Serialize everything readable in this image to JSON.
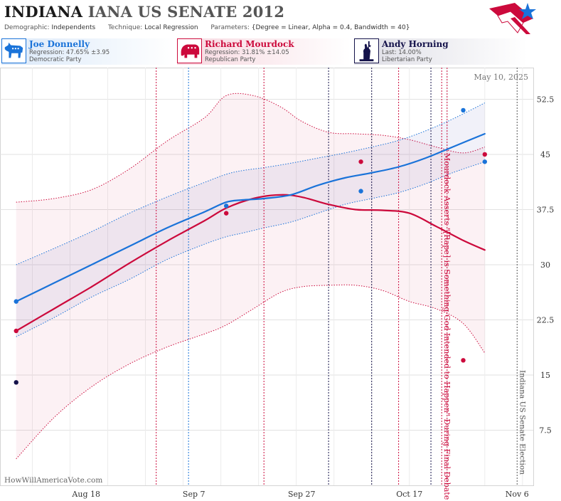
{
  "header": {
    "title_state": "INDIANA",
    "title_rest": "IANA US SENATE 2012",
    "demographic_label": "Demographic:",
    "demographic_value": "Independents",
    "technique_label": "Technique:",
    "technique_value": "Local Regression",
    "parameters_label": "Parameters:",
    "parameters_value": "{Degree = Linear, Alpha = 0.4, Bandwidth = 40}"
  },
  "candidates": [
    {
      "name": "Joe Donnelly",
      "stat": "Regression: 47.65% ±3.95",
      "party": "Democratic Party",
      "color": "#1a73d9",
      "icon": "donkey-icon"
    },
    {
      "name": "Richard Mourdock",
      "stat": "Regression: 31.81% ±14.05",
      "party": "Republican Party",
      "color": "#cc0a3c",
      "icon": "elephant-icon"
    },
    {
      "name": "Andy Horning",
      "stat": "Last: 14.00%",
      "party": "Libertarian Party",
      "color": "#14124a",
      "icon": "liberty-icon"
    }
  ],
  "chart_data": {
    "type": "line",
    "date_label": "May 10, 2025",
    "watermark": "HowWillAmericaVote.com",
    "x_ticks": [
      "Aug 18",
      "Sep 7",
      "Sep 27",
      "Oct 17",
      "Nov 6"
    ],
    "y_ticks": [
      7.5,
      15,
      22.5,
      30,
      37.5,
      45,
      52.5
    ],
    "ylim": [
      0,
      56.8
    ],
    "xlim": [
      "2012-08-02",
      "2012-11-09"
    ],
    "grid": true,
    "series": [
      {
        "name": "Joe Donnelly",
        "color": "#1a73d9",
        "x": [
          "2012-08-05",
          "2012-08-12",
          "2012-08-19",
          "2012-08-26",
          "2012-09-02",
          "2012-09-09",
          "2012-09-13",
          "2012-09-16",
          "2012-09-20",
          "2012-09-25",
          "2012-09-30",
          "2012-10-05",
          "2012-10-10",
          "2012-10-15",
          "2012-10-20",
          "2012-10-25",
          "2012-10-31"
        ],
        "y": [
          25,
          27.5,
          30,
          32.5,
          35,
          37.2,
          38.5,
          38.8,
          39,
          39.5,
          40.8,
          41.8,
          42.5,
          43.3,
          44.5,
          46,
          47.8
        ],
        "upper": [
          30,
          32.2,
          34.5,
          37,
          39.2,
          41.2,
          42.3,
          42.8,
          43.2,
          43.8,
          44.5,
          45.2,
          46,
          46.9,
          48.2,
          49.8,
          52
        ],
        "lower": [
          20.2,
          22.8,
          25.6,
          28,
          30.7,
          32.8,
          33.8,
          34.3,
          35,
          35.8,
          37,
          38.2,
          39,
          39.8,
          41,
          42.5,
          44
        ]
      },
      {
        "name": "Richard Mourdock",
        "color": "#cc0a3c",
        "x": [
          "2012-08-05",
          "2012-08-12",
          "2012-08-19",
          "2012-08-26",
          "2012-09-02",
          "2012-09-09",
          "2012-09-13",
          "2012-09-18",
          "2012-09-23",
          "2012-09-27",
          "2012-10-02",
          "2012-10-07",
          "2012-10-12",
          "2012-10-17",
          "2012-10-22",
          "2012-10-27",
          "2012-10-31"
        ],
        "y": [
          21,
          24,
          27,
          30.2,
          33.2,
          36,
          37.7,
          39,
          39.5,
          39.2,
          38.2,
          37.5,
          37.4,
          37,
          35.2,
          33.3,
          32
        ],
        "upper": [
          38.5,
          39,
          40.2,
          43,
          46.8,
          50,
          53,
          53,
          51.5,
          49.5,
          48,
          47.8,
          47.6,
          47,
          46,
          45.2,
          46
        ],
        "lower": [
          3.6,
          9.2,
          13.4,
          16.5,
          18.8,
          20.6,
          21.8,
          24,
          26.2,
          27,
          27.2,
          27.2,
          26.5,
          25,
          24,
          22,
          18
        ]
      }
    ],
    "points": [
      {
        "series": "Joe Donnelly",
        "color": "#1a73d9",
        "x": [
          "2012-08-05",
          "2012-09-13",
          "2012-10-08",
          "2012-10-27",
          "2012-10-31"
        ],
        "y": [
          25,
          38,
          40,
          51,
          44
        ]
      },
      {
        "series": "Richard Mourdock",
        "color": "#cc0a3c",
        "x": [
          "2012-08-05",
          "2012-09-13",
          "2012-10-08",
          "2012-10-27",
          "2012-10-31"
        ],
        "y": [
          21,
          37,
          44,
          17,
          45
        ]
      },
      {
        "series": "Andy Horning",
        "color": "#14124a",
        "x": [
          "2012-08-05"
        ],
        "y": [
          14
        ]
      }
    ],
    "events": [
      {
        "date": "2012-08-31",
        "color": "#cc0a3c"
      },
      {
        "date": "2012-09-06",
        "color": "#1a73d9"
      },
      {
        "date": "2012-09-20",
        "color": "#cc0a3c"
      },
      {
        "date": "2012-10-02",
        "color": "#14124a"
      },
      {
        "date": "2012-10-10",
        "color": "#14124a"
      },
      {
        "date": "2012-10-15",
        "color": "#cc0a3c"
      },
      {
        "date": "2012-10-21",
        "color": "#14124a"
      },
      {
        "date": "2012-10-23",
        "color": "#cc0a3c"
      },
      {
        "date": "2012-10-24",
        "color": "#cc0a3c"
      },
      {
        "date": "2012-11-06",
        "color": "#555555"
      }
    ],
    "annotations": [
      {
        "text": "Mourdock Asserts \"[Rape] is Something God Intended to Happen\" During Final Debate",
        "date": "2012-10-23",
        "color": "#cc0a3c"
      },
      {
        "text": "Indiana US Senate Election",
        "date": "2012-11-06",
        "color": "#555555"
      }
    ]
  }
}
